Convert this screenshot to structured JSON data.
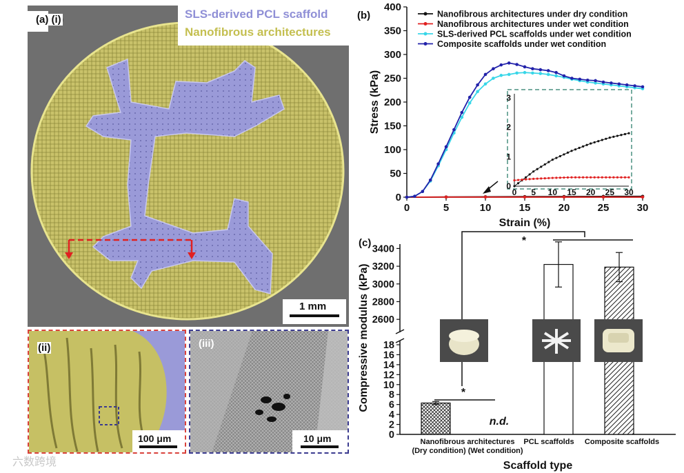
{
  "panel_a": {
    "label_a": "(a)",
    "label_i": "(i)",
    "legend_scaffold": "SLS-derived PCL scaffold",
    "legend_nanofibrous": "Nanofibrous architectures",
    "scalebar_i": "1 mm",
    "label_ii": "(ii)",
    "scalebar_ii": "100 μm",
    "label_iii": "(iii)",
    "scalebar_iii": "10 μm",
    "colors": {
      "scaffold_overlay": "#8f8fd6",
      "nanofiber_overlay": "#d6d27a",
      "frame_ii": "#d9413b",
      "frame_iii": "#3a3a8f",
      "arrow": "#e02020"
    }
  },
  "panel_b": {
    "label": "(b)",
    "chart_data": {
      "type": "line",
      "xlabel": "Strain (%)",
      "ylabel": "Stress (kPa)",
      "xlim": [
        0,
        30
      ],
      "ylim": [
        0,
        400
      ],
      "xticks": [
        0,
        5,
        10,
        15,
        20,
        25,
        30
      ],
      "yticks": [
        0,
        50,
        100,
        150,
        200,
        250,
        300,
        350,
        400
      ],
      "legend_position": "top",
      "series": [
        {
          "name": "Nanofibrous architectures under dry condition",
          "color": "#111111",
          "x": [
            0,
            5,
            10,
            15,
            20,
            25,
            30
          ],
          "y": [
            0,
            0.5,
            0.9,
            1.2,
            1.45,
            1.65,
            1.8
          ]
        },
        {
          "name": "Nanofibrous architectures under wet condition",
          "color": "#e02020",
          "x": [
            0,
            5,
            10,
            15,
            20,
            25,
            30
          ],
          "y": [
            0.2,
            0.25,
            0.28,
            0.3,
            0.3,
            0.3,
            0.3
          ]
        },
        {
          "name": "SLS-derived PCL scaffolds under wet condition",
          "color": "#38d6e8",
          "x": [
            0,
            1,
            2,
            3,
            4,
            5,
            6,
            7,
            8,
            9,
            10,
            11,
            12,
            13,
            14,
            15,
            16,
            17,
            18,
            19,
            20,
            21,
            22,
            23,
            24,
            25,
            26,
            27,
            28,
            29,
            30
          ],
          "y": [
            0,
            2,
            12,
            34,
            66,
            100,
            135,
            168,
            198,
            222,
            238,
            250,
            256,
            258,
            261,
            262,
            261,
            260,
            258,
            255,
            252,
            248,
            245,
            242,
            240,
            238,
            236,
            234,
            232,
            230,
            228
          ]
        },
        {
          "name": "Composite scaffolds under wet condition",
          "color": "#2222aa",
          "x": [
            0,
            1,
            2,
            3,
            4,
            5,
            6,
            7,
            8,
            9,
            10,
            11,
            12,
            13,
            14,
            15,
            16,
            17,
            18,
            19,
            20,
            21,
            22,
            23,
            24,
            25,
            26,
            27,
            28,
            29,
            30
          ],
          "y": [
            0,
            2,
            12,
            36,
            70,
            106,
            142,
            178,
            210,
            236,
            258,
            270,
            278,
            282,
            279,
            274,
            270,
            268,
            266,
            262,
            255,
            250,
            248,
            246,
            245,
            242,
            240,
            238,
            236,
            234,
            232
          ]
        }
      ],
      "inset": {
        "xlim": [
          0,
          30
        ],
        "ylim": [
          0,
          3
        ],
        "xticks": [
          0,
          5,
          10,
          15,
          20,
          25,
          30
        ],
        "yticks": [
          0,
          1,
          2,
          3
        ]
      }
    }
  },
  "panel_c": {
    "label": "(c)",
    "chart_data": {
      "type": "bar",
      "xlabel": "Scaffold type",
      "ylabel": "Compressive modulus (kPa)",
      "categories": [
        "Nanofibrous architectures (Dry condition)",
        "Nanofibrous architectures (Wet condition)",
        "PCL scaffolds",
        "Composite scaffolds"
      ],
      "category_lines": [
        [
          "Nanofibrous",
          "(Dry condition)"
        ],
        [
          "architectures",
          "(Wet condition)"
        ],
        [
          "PCL scaffolds",
          ""
        ],
        [
          "Composite scaffolds",
          ""
        ]
      ],
      "values": [
        6.3,
        null,
        3220,
        3190
      ],
      "errors": [
        0.3,
        null,
        255,
        165
      ],
      "bar_fills": [
        "crosshatch",
        "none",
        "white",
        "diagonal-hatch"
      ],
      "not_determined": "n.d.",
      "y_axis_broken": true,
      "lower_range": [
        0,
        18
      ],
      "upper_range": [
        2500,
        3450
      ],
      "lower_ticks": [
        0,
        2,
        4,
        6,
        8,
        10,
        12,
        14,
        16,
        18
      ],
      "upper_ticks": [
        2600,
        2800,
        3000,
        3200,
        3400
      ],
      "significance_marker": "*"
    }
  },
  "watermark": "六数跨境"
}
